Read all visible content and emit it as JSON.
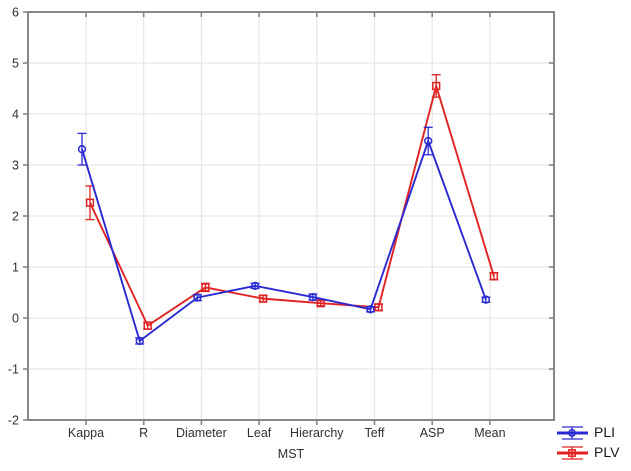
{
  "chart_data": {
    "type": "line",
    "title": "",
    "xlabel": "MST",
    "ylabel": "",
    "ylim": [
      -2,
      6
    ],
    "yticks": [
      6,
      5,
      4,
      3,
      2,
      1,
      0,
      -1,
      -2
    ],
    "grid": true,
    "legend_position": "bottom-right-outside",
    "categories": [
      "Kappa",
      "R",
      "Diameter",
      "Leaf",
      "Hierarchy",
      "Teff",
      "ASP",
      "Mean"
    ],
    "series": [
      {
        "name": "PLI",
        "marker": "circle",
        "color": "#2a2ad2",
        "values": [
          3.31,
          -0.45,
          0.4,
          0.63,
          0.41,
          0.17,
          3.47,
          0.36
        ],
        "errors": [
          0.31,
          0.06,
          0.06,
          0.05,
          0.06,
          0.05,
          0.27,
          0.05
        ]
      },
      {
        "name": "PLV",
        "marker": "square",
        "color": "#e02222",
        "values": [
          2.26,
          -0.15,
          0.6,
          0.38,
          0.29,
          0.21,
          4.55,
          0.82
        ],
        "errors": [
          0.33,
          0.07,
          0.08,
          0.06,
          0.05,
          0.06,
          0.22,
          0.07
        ]
      }
    ]
  },
  "colors": {
    "background": "#ffffff",
    "frame": "#878787",
    "grid": "#e6e6e6",
    "text": "#303030",
    "series_pli": "#2a2ad2",
    "series_plv": "#e02222"
  }
}
